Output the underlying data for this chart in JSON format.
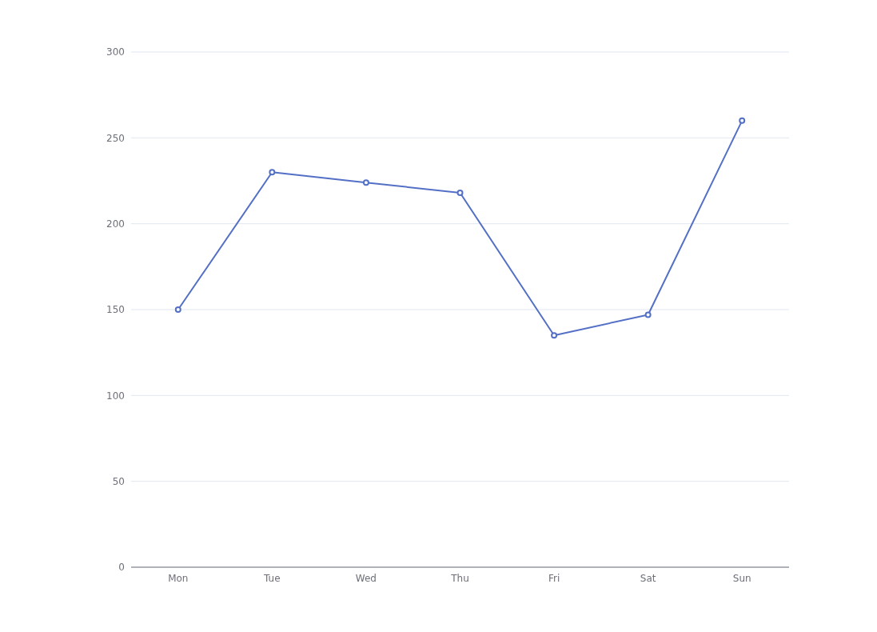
{
  "chart_data": {
    "type": "line",
    "categories": [
      "Mon",
      "Tue",
      "Wed",
      "Thu",
      "Fri",
      "Sat",
      "Sun"
    ],
    "values": [
      150,
      230,
      224,
      218,
      135,
      147,
      260
    ],
    "color": "#5470c6",
    "ylim": [
      0,
      300
    ],
    "yticks": [
      0,
      50,
      100,
      150,
      200,
      250,
      300
    ],
    "grid": "y",
    "marker": "circle",
    "line_style": "solid"
  }
}
